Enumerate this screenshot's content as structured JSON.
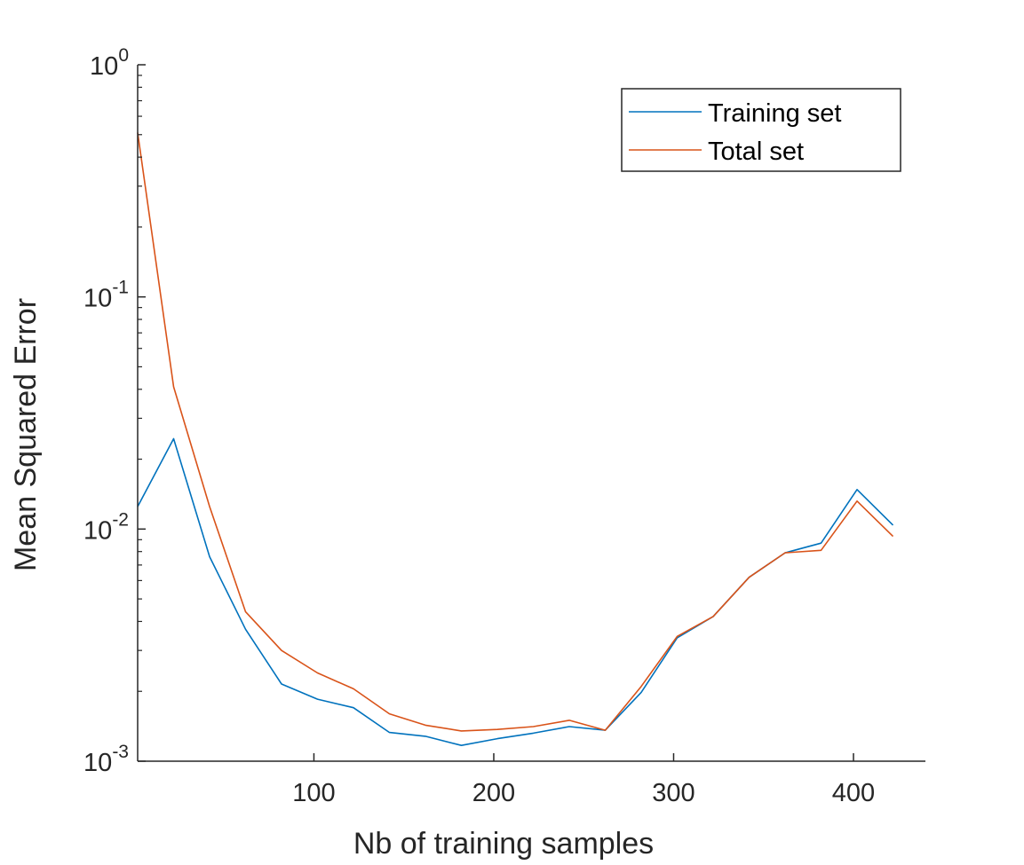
{
  "chart_data": {
    "type": "line",
    "title": "",
    "xlabel": "Nb of training samples",
    "ylabel": "Mean Squared Error",
    "xlim": [
      2,
      440
    ],
    "ylim": [
      0.001,
      1
    ],
    "yscale": "log",
    "x_ticks": [
      100,
      200,
      300,
      400
    ],
    "x_tick_labels": [
      "100",
      "200",
      "300",
      "400"
    ],
    "y_ticks": [
      {
        "value": 0.001,
        "base": "10",
        "exp": "-3"
      },
      {
        "value": 0.01,
        "base": "10",
        "exp": "-2"
      },
      {
        "value": 0.1,
        "base": "10",
        "exp": "-1"
      },
      {
        "value": 1,
        "base": "10",
        "exp": "0"
      }
    ],
    "grid": false,
    "legend": {
      "placement": "top-right"
    },
    "x": [
      2,
      22,
      42,
      62,
      82,
      102,
      122,
      142,
      162,
      182,
      202,
      222,
      242,
      262,
      282,
      302,
      322,
      342,
      362,
      382,
      402,
      422
    ],
    "series": [
      {
        "name": "Training set",
        "color": "#0072BD",
        "values": [
          0.0125,
          0.0245,
          0.0076,
          0.0037,
          0.00215,
          0.00185,
          0.0017,
          0.00133,
          0.00128,
          0.00117,
          0.00125,
          0.00132,
          0.00141,
          0.00136,
          0.00198,
          0.0034,
          0.0042,
          0.0062,
          0.0079,
          0.0087,
          0.0148,
          0.0104
        ]
      },
      {
        "name": "Total set",
        "color": "#D95319",
        "values": [
          0.51,
          0.041,
          0.0125,
          0.0044,
          0.003,
          0.0024,
          0.00205,
          0.0016,
          0.00143,
          0.00135,
          0.00137,
          0.00141,
          0.0015,
          0.00136,
          0.0021,
          0.00345,
          0.0042,
          0.0062,
          0.0079,
          0.0081,
          0.0132,
          0.0093
        ]
      }
    ]
  }
}
